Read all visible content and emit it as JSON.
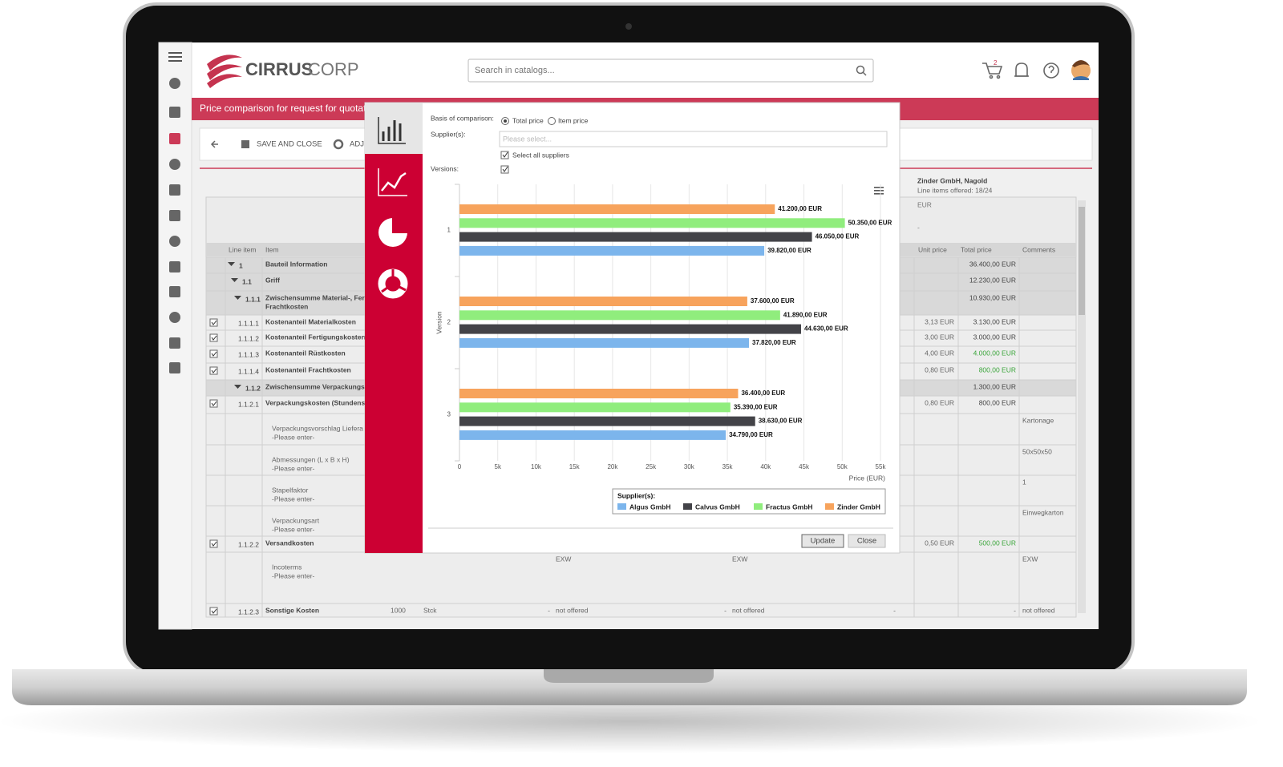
{
  "header": {
    "logo_bold": "CIRRUS",
    "logo_light": "CORP",
    "search_placeholder": "Search in catalogs...",
    "cart_count": "2"
  },
  "title_bar": "Price comparison for request for quotati",
  "toolbar": {
    "save": "SAVE AND CLOSE",
    "adjust": "ADJ"
  },
  "supplier": {
    "name": "Zinder GmbH, Nagold",
    "offered": "Line items offered: 18/24",
    "currency": "EUR",
    "dash": "-"
  },
  "table": {
    "left_headers": [
      "Line item",
      "Item"
    ],
    "right_headers": [
      "Unit price",
      "Total price",
      "Comments"
    ],
    "rows": [
      {
        "line_item": "1",
        "item": [
          "Bauteil Information"
        ],
        "total_price": "36.400,00 EUR"
      },
      {
        "line_item": "1.1",
        "item": [
          "Griff"
        ],
        "total_price": "12.230,00 EUR"
      },
      {
        "line_item": "1.1.1",
        "item": [
          "Zwischensumme Material-, Fert",
          "Frachtkosten"
        ],
        "total_price": "10.930,00 EUR"
      },
      {
        "line_item": "1.1.1.1",
        "item": [
          "Kostenanteil Materialkosten"
        ],
        "unit_price": "3,13 EUR",
        "total_price": "3.130,00 EUR"
      },
      {
        "line_item": "1.1.1.2",
        "item": [
          "Kostenanteil Fertigungskosten"
        ],
        "unit_price": "3,00 EUR",
        "total_price": "3.000,00 EUR"
      },
      {
        "line_item": "1.1.1.3",
        "item": [
          "Kostenanteil Rüstkosten"
        ],
        "unit_price": "4,00 EUR",
        "total_price": "4.000,00 EUR"
      },
      {
        "line_item": "1.1.1.4",
        "item": [
          "Kostenanteil Frachtkosten"
        ],
        "unit_price": "0,80 EUR",
        "total_price": "800,00 EUR"
      },
      {
        "line_item": "1.1.2",
        "item": [
          "Zwischensumme Verpackungs-"
        ],
        "total_price": "1.300,00 EUR"
      },
      {
        "line_item": "1.1.2.1",
        "item": [
          "Verpackungskosten (Stundensa"
        ],
        "unit_price": "0,80 EUR",
        "total_price": "800,00 EUR"
      },
      {
        "item": [
          "Verpackungsvorschlag Liefera",
          "-Please enter-"
        ],
        "comments": "Kartonage"
      },
      {
        "item": [
          "Abmessungen (L x B x H)",
          "-Please enter-"
        ],
        "comments": "50x50x50"
      },
      {
        "item": [
          "Stapelfaktor",
          "-Please enter-"
        ],
        "comments": "1"
      },
      {
        "item": [
          "Verpackungsart",
          "-Please enter-"
        ],
        "comments": "Einwegkarton"
      },
      {
        "line_item": "1.1.2.2",
        "item": [
          "Versandkosten"
        ],
        "unit_price": "0,50 EUR",
        "total_price": "500,00 EUR"
      },
      {
        "item": [
          "Incoterms",
          "-Please enter-"
        ],
        "cells": [
          "EXW",
          "EXW"
        ],
        "comments": "EXW"
      },
      {
        "line_item": "1.1.2.3",
        "item": [
          "Sonstige Kosten"
        ],
        "cells": [
          "1000",
          "Stck",
          "-",
          "not offered",
          "-",
          "not offered",
          "-",
          "-"
        ],
        "comments": "not offered"
      }
    ]
  },
  "modal": {
    "basis_label": "Basis of comparison:",
    "total_price": "Total price",
    "item_price": "Item price",
    "suppliers_label": "Supplier(s):",
    "suppliers_placeholder": "Please select...",
    "select_all": "Select all suppliers",
    "versions_label": "Versions:",
    "update": "Update",
    "close": "Close"
  },
  "chart_data": {
    "type": "hbar",
    "categories": [
      "1",
      "2",
      "3"
    ],
    "y_label": "Version",
    "x_label": "Price (EUR)",
    "legend_title": "Supplier(s):",
    "legend": "bottom-right",
    "grid": true,
    "xlim": [
      0,
      55000
    ],
    "xticks": [
      0,
      {
        "value": 5000,
        "label": "5k"
      },
      {
        "value": 10000,
        "label": "10k"
      },
      {
        "value": 15000,
        "label": "15k"
      },
      {
        "value": 20000,
        "label": "20k"
      },
      {
        "value": 25000,
        "label": "25k"
      },
      {
        "value": 30000,
        "label": "30k"
      },
      {
        "value": 35000,
        "label": "35k"
      },
      {
        "value": 40000,
        "label": "40k"
      },
      {
        "value": 45000,
        "label": "45k"
      },
      {
        "value": 50000,
        "label": "50k"
      },
      {
        "value": 55000,
        "label": "55k"
      }
    ],
    "series": [
      {
        "name": "Algus GmbH",
        "color": "#7cb5ec",
        "values": [
          39820,
          37820,
          34790
        ],
        "value_labels": [
          "39.820,00 EUR",
          "37.820,00 EUR",
          "34.790,00 EUR"
        ]
      },
      {
        "name": "Calvus GmbH",
        "color": "#434348",
        "values": [
          46050,
          44630,
          38630
        ],
        "value_labels": [
          "46.050,00 EUR",
          "44.630,00 EUR",
          "38.630,00 EUR"
        ]
      },
      {
        "name": "Fractus GmbH",
        "color": "#90ed7d",
        "values": [
          50350,
          41890,
          35390
        ],
        "value_labels": [
          "50.350,00 EUR",
          "41.890,00 EUR",
          "35.390,00 EUR"
        ]
      },
      {
        "name": "Zinder GmbH",
        "color": "#f7a35c",
        "values": [
          41200,
          37600,
          36400
        ],
        "value_labels": [
          "41.200,00 EUR",
          "37.600,00 EUR",
          "36.400,00 EUR"
        ]
      }
    ]
  }
}
